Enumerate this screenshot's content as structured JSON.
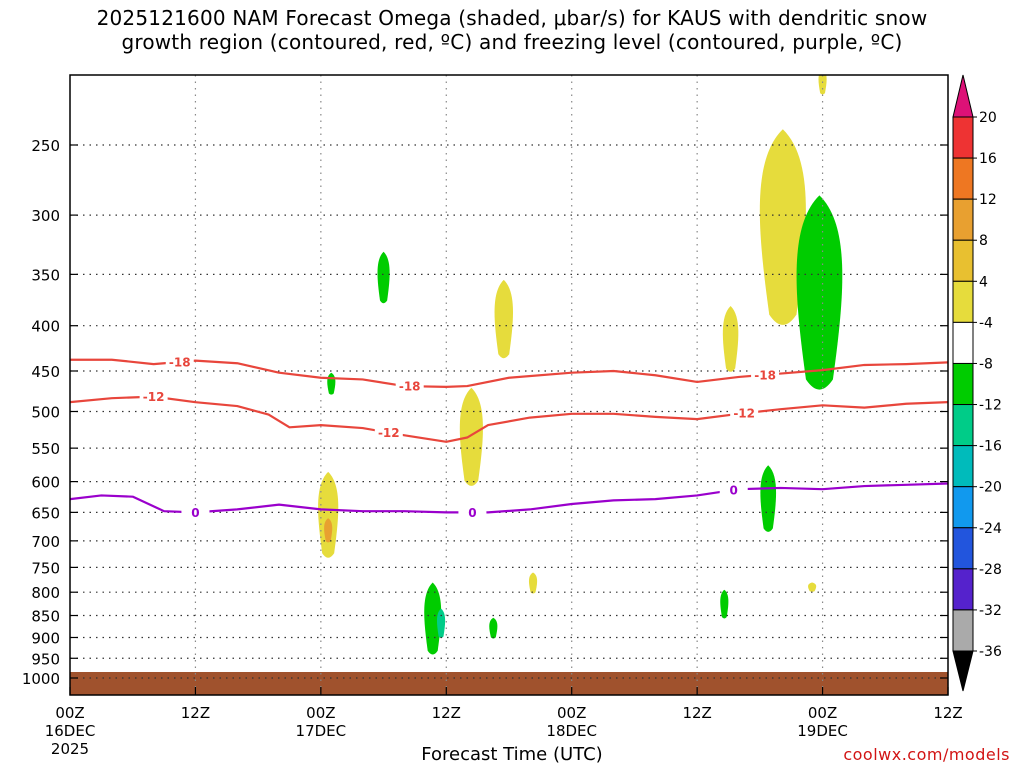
{
  "title": {
    "line1": "2025121600 NAM Forecast Omega (shaded, μbar/s) for KAUS with dendritic snow",
    "line2": "growth region (contoured, red, ºC) and freezing level (contoured, purple, ºC)"
  },
  "credit": "coolwx.com/models",
  "colors": {
    "dgz_contour": "#e8463c",
    "freezing_contour": "#9a00cc",
    "terrain": "#a0522d"
  },
  "chart_data": {
    "type": "heatmap",
    "title": "2025121600 NAM Forecast Omega (shaded, μbar/s) for KAUS with dendritic snow growth region (contoured, red, ºC) and freezing level (contoured, purple, ºC)",
    "xlabel": "Forecast Time (UTC)",
    "ylabel": "",
    "x_unit": "forecast hour",
    "xlim": [
      0,
      84
    ],
    "ylim": [
      1050,
      200
    ],
    "y_scale": "log-pressure (hPa)",
    "x_ticks": [
      {
        "hour": 0,
        "label": "00Z",
        "sub": "16DEC",
        "sub2": "2025"
      },
      {
        "hour": 12,
        "label": "12Z",
        "sub": "",
        "sub2": ""
      },
      {
        "hour": 24,
        "label": "00Z",
        "sub": "17DEC",
        "sub2": ""
      },
      {
        "hour": 36,
        "label": "12Z",
        "sub": "",
        "sub2": ""
      },
      {
        "hour": 48,
        "label": "00Z",
        "sub": "18DEC",
        "sub2": ""
      },
      {
        "hour": 60,
        "label": "12Z",
        "sub": "",
        "sub2": ""
      },
      {
        "hour": 72,
        "label": "00Z",
        "sub": "19DEC",
        "sub2": ""
      },
      {
        "hour": 84,
        "label": "12Z",
        "sub": "",
        "sub2": ""
      }
    ],
    "y_ticks": [
      250,
      300,
      350,
      400,
      450,
      500,
      550,
      600,
      650,
      700,
      750,
      800,
      850,
      900,
      950,
      1000
    ],
    "grid": true,
    "colorbar": {
      "labels": [
        "20",
        "16",
        "12",
        "8",
        "4",
        "-4",
        "-8",
        "-12",
        "-16",
        "-20",
        "-24",
        "-28",
        "-32",
        "-36"
      ],
      "bins": [
        {
          "color": "#ee3333"
        },
        {
          "color": "#ee7722"
        },
        {
          "color": "#e8a030"
        },
        {
          "color": "#e8c030"
        },
        {
          "color": "#e6dc3c"
        },
        {
          "color": "#ffffff"
        },
        {
          "color": "#00cc00"
        },
        {
          "color": "#00cc88"
        },
        {
          "color": "#00bbbb"
        },
        {
          "color": "#1199ee"
        },
        {
          "color": "#2255dd"
        },
        {
          "color": "#5522cc"
        },
        {
          "color": "#9900bb"
        },
        {
          "color": "#aaaaaa"
        }
      ],
      "top_cap": "#dd1177",
      "bottom_cap": "#000000"
    },
    "contours": [
      {
        "name": "-18",
        "color": "#e8463c",
        "label_hours": [
          10.5,
          32.5,
          66.5
        ],
        "points": [
          [
            0,
            437
          ],
          [
            4,
            437
          ],
          [
            8,
            442
          ],
          [
            12,
            438
          ],
          [
            16,
            441
          ],
          [
            20,
            452
          ],
          [
            24,
            458
          ],
          [
            28,
            460
          ],
          [
            32,
            468
          ],
          [
            36,
            469
          ],
          [
            38,
            468
          ],
          [
            42,
            458
          ],
          [
            48,
            452
          ],
          [
            52,
            450
          ],
          [
            56,
            455
          ],
          [
            60,
            463
          ],
          [
            64,
            457
          ],
          [
            68,
            453
          ],
          [
            72,
            449
          ],
          [
            76,
            443
          ],
          [
            80,
            442
          ],
          [
            84,
            440
          ]
        ]
      },
      {
        "name": "-12",
        "color": "#e8463c",
        "label_hours": [
          8.0,
          30.5,
          64.5
        ],
        "points": [
          [
            0,
            488
          ],
          [
            4,
            483
          ],
          [
            8,
            481
          ],
          [
            12,
            488
          ],
          [
            16,
            493
          ],
          [
            19,
            504
          ],
          [
            21,
            521
          ],
          [
            24,
            518
          ],
          [
            28,
            522
          ],
          [
            32,
            532
          ],
          [
            36,
            541
          ],
          [
            38,
            535
          ],
          [
            40,
            518
          ],
          [
            44,
            508
          ],
          [
            48,
            503
          ],
          [
            52,
            503
          ],
          [
            56,
            507
          ],
          [
            60,
            510
          ],
          [
            64,
            503
          ],
          [
            68,
            497
          ],
          [
            72,
            492
          ],
          [
            76,
            495
          ],
          [
            80,
            490
          ],
          [
            84,
            488
          ]
        ]
      },
      {
        "name": "0",
        "color": "#9a00cc",
        "label_hours": [
          12.0,
          38.5,
          63.5
        ],
        "points": [
          [
            0,
            628
          ],
          [
            3,
            622
          ],
          [
            6,
            624
          ],
          [
            9,
            648
          ],
          [
            12,
            650
          ],
          [
            16,
            645
          ],
          [
            20,
            637
          ],
          [
            24,
            645
          ],
          [
            28,
            648
          ],
          [
            32,
            648
          ],
          [
            36,
            650
          ],
          [
            40,
            650
          ],
          [
            44,
            645
          ],
          [
            48,
            636
          ],
          [
            52,
            630
          ],
          [
            56,
            628
          ],
          [
            60,
            622
          ],
          [
            64,
            612
          ],
          [
            68,
            610
          ],
          [
            72,
            612
          ],
          [
            76,
            607
          ],
          [
            80,
            605
          ],
          [
            84,
            603
          ]
        ]
      }
    ],
    "omega_regions": [
      {
        "value_bin": "4 to 8",
        "color": "#e6dc3c",
        "center_hour": 72.0,
        "p_top": 205,
        "p_bottom": 220
      },
      {
        "value_bin": "4 to 8",
        "color": "#e6dc3c",
        "center_hour": 68.2,
        "p_top": 240,
        "p_bottom": 410
      },
      {
        "value_bin": "-4 to -8",
        "color": "#00cc00",
        "center_hour": 71.7,
        "p_top": 285,
        "p_bottom": 485
      },
      {
        "value_bin": "-4 to -8",
        "color": "#00cc00",
        "center_hour": 30.0,
        "p_top": 330,
        "p_bottom": 380
      },
      {
        "value_bin": "4 to 8",
        "color": "#e6dc3c",
        "center_hour": 41.5,
        "p_top": 355,
        "p_bottom": 440
      },
      {
        "value_bin": "4 to 8",
        "color": "#e6dc3c",
        "center_hour": 63.2,
        "p_top": 380,
        "p_bottom": 455
      },
      {
        "value_bin": "-4 to -8",
        "color": "#00cc00",
        "center_hour": 25.0,
        "p_top": 452,
        "p_bottom": 480
      },
      {
        "value_bin": "4 to 8",
        "color": "#e6dc3c",
        "center_hour": 38.4,
        "p_top": 470,
        "p_bottom": 615
      },
      {
        "value_bin": "4 to 8",
        "color": "#e6dc3c",
        "center_hour": 24.7,
        "p_top": 585,
        "p_bottom": 740
      },
      {
        "value_bin": "8 to 12",
        "color": "#e8a030",
        "center_hour": 24.7,
        "p_top": 660,
        "p_bottom": 705
      },
      {
        "value_bin": "-4 to -8",
        "color": "#00cc00",
        "center_hour": 66.8,
        "p_top": 575,
        "p_bottom": 690
      },
      {
        "value_bin": "4 to 8",
        "color": "#e6dc3c",
        "center_hour": 44.3,
        "p_top": 760,
        "p_bottom": 805
      },
      {
        "value_bin": "4 to 8",
        "color": "#e6dc3c",
        "center_hour": 71.0,
        "p_top": 780,
        "p_bottom": 800
      },
      {
        "value_bin": "-4 to -8",
        "color": "#00cc00",
        "center_hour": 62.6,
        "p_top": 795,
        "p_bottom": 860
      },
      {
        "value_bin": "-4 to -8",
        "color": "#00cc00",
        "center_hour": 34.7,
        "p_top": 780,
        "p_bottom": 950
      },
      {
        "value_bin": "-8 to -12",
        "color": "#00cc88",
        "center_hour": 35.5,
        "p_top": 835,
        "p_bottom": 905
      },
      {
        "value_bin": "-4 to -8",
        "color": "#00cc00",
        "center_hour": 40.5,
        "p_top": 855,
        "p_bottom": 905
      }
    ],
    "terrain": {
      "color": "#a0522d",
      "note": "surface below ~1000 hPa"
    }
  }
}
